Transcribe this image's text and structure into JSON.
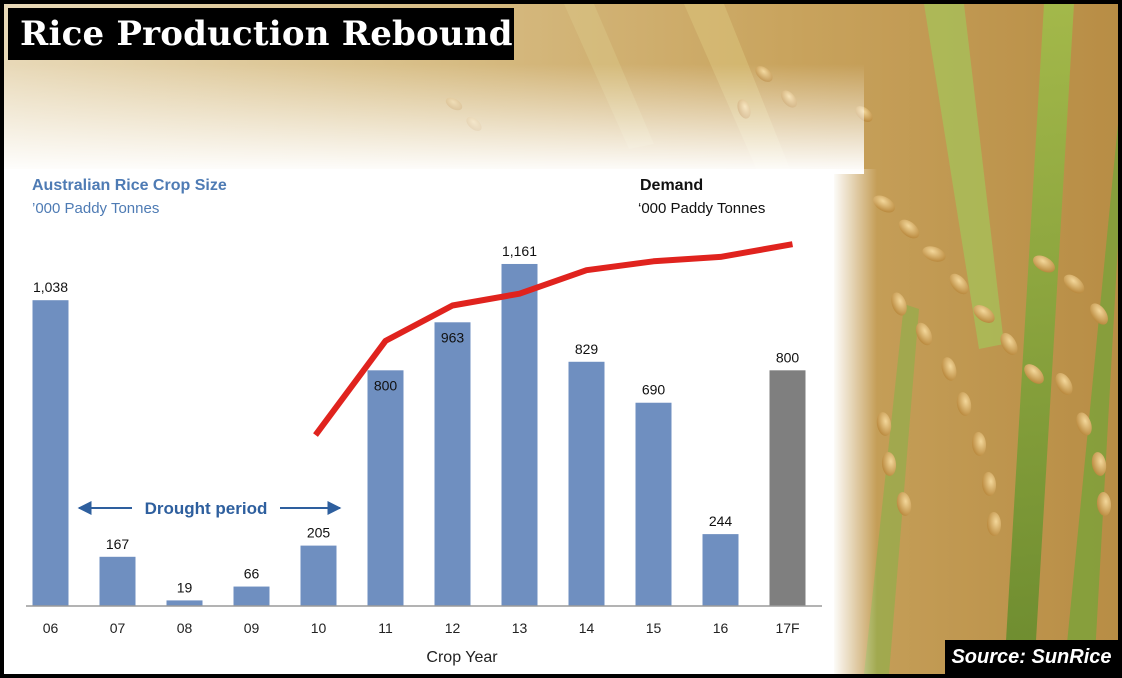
{
  "header": {
    "title": "Rice Production Rebound"
  },
  "footer": {
    "source": "Source: SunRice"
  },
  "chart_data": {
    "type": "bar",
    "title": "Australian Rice Crop Size",
    "subtitle": "’000 Paddy Tonnes",
    "xlabel": "Crop Year",
    "ylabel": "",
    "ylim": [
      0,
      1300
    ],
    "grid": false,
    "categories": [
      "06",
      "07",
      "08",
      "09",
      "10",
      "11",
      "12",
      "13",
      "14",
      "15",
      "16",
      "17F"
    ],
    "series": [
      {
        "values": [
          1038,
          167,
          19,
          66,
          205,
          800,
          963,
          1161,
          829,
          690,
          244,
          800
        ],
        "labels": [
          "1,038",
          "167",
          "19",
          "66",
          "205",
          "800",
          "963",
          "1,161",
          "829",
          "690",
          "244",
          "800"
        ],
        "color": "#6f8fc0",
        "forecast_color": "#7f7f7f",
        "forecast_index": 11
      }
    ],
    "demand_line": {
      "title": "Demand",
      "subtitle": "‘000 Paddy Tonnes",
      "color": "#e0231e",
      "x_categories": [
        "10",
        "11",
        "12",
        "13",
        "14",
        "15",
        "16",
        "17F"
      ],
      "values": [
        580,
        900,
        1020,
        1060,
        1140,
        1170,
        1185,
        1228
      ]
    },
    "annotation": {
      "text": "Drought period",
      "from": "07",
      "to": "10",
      "color": "#2e5f9e"
    }
  }
}
